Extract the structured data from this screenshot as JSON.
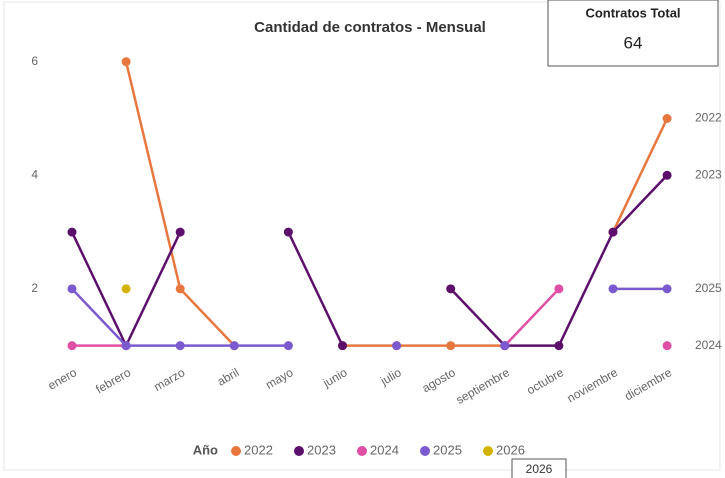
{
  "chart_data": {
    "type": "line",
    "title": "Cantidad de contratos - Mensual",
    "categories": [
      "enero",
      "febrero",
      "marzo",
      "abril",
      "mayo",
      "junio",
      "julio",
      "agosto",
      "septiembre",
      "octubre",
      "noviembre",
      "diciembre"
    ],
    "ylim": [
      0.8,
      6.4
    ],
    "yticks": [
      2,
      4,
      6
    ],
    "legend_title": "Año",
    "series": [
      {
        "name": "2022",
        "color": "#e8773f",
        "values": [
          null,
          6,
          2,
          1,
          null,
          1,
          1,
          1,
          1,
          null,
          3,
          5
        ]
      },
      {
        "name": "2023",
        "color": "#5c0f6b",
        "values": [
          3,
          1,
          3,
          null,
          3,
          1,
          null,
          2,
          1,
          1,
          3,
          4
        ]
      },
      {
        "name": "2024",
        "color": "#e04fa6",
        "values": [
          1,
          1,
          null,
          null,
          null,
          null,
          null,
          null,
          1,
          2,
          null,
          1
        ]
      },
      {
        "name": "2025",
        "color": "#7b5ad0",
        "values": [
          2,
          1,
          1,
          1,
          1,
          null,
          1,
          null,
          1,
          null,
          2,
          2
        ]
      },
      {
        "name": "2026",
        "color": "#d4b300",
        "values": [
          null,
          2,
          null,
          null,
          null,
          null,
          null,
          null,
          null,
          null,
          null,
          null
        ]
      }
    ],
    "card": {
      "title": "Contratos Total",
      "value": 64
    }
  }
}
